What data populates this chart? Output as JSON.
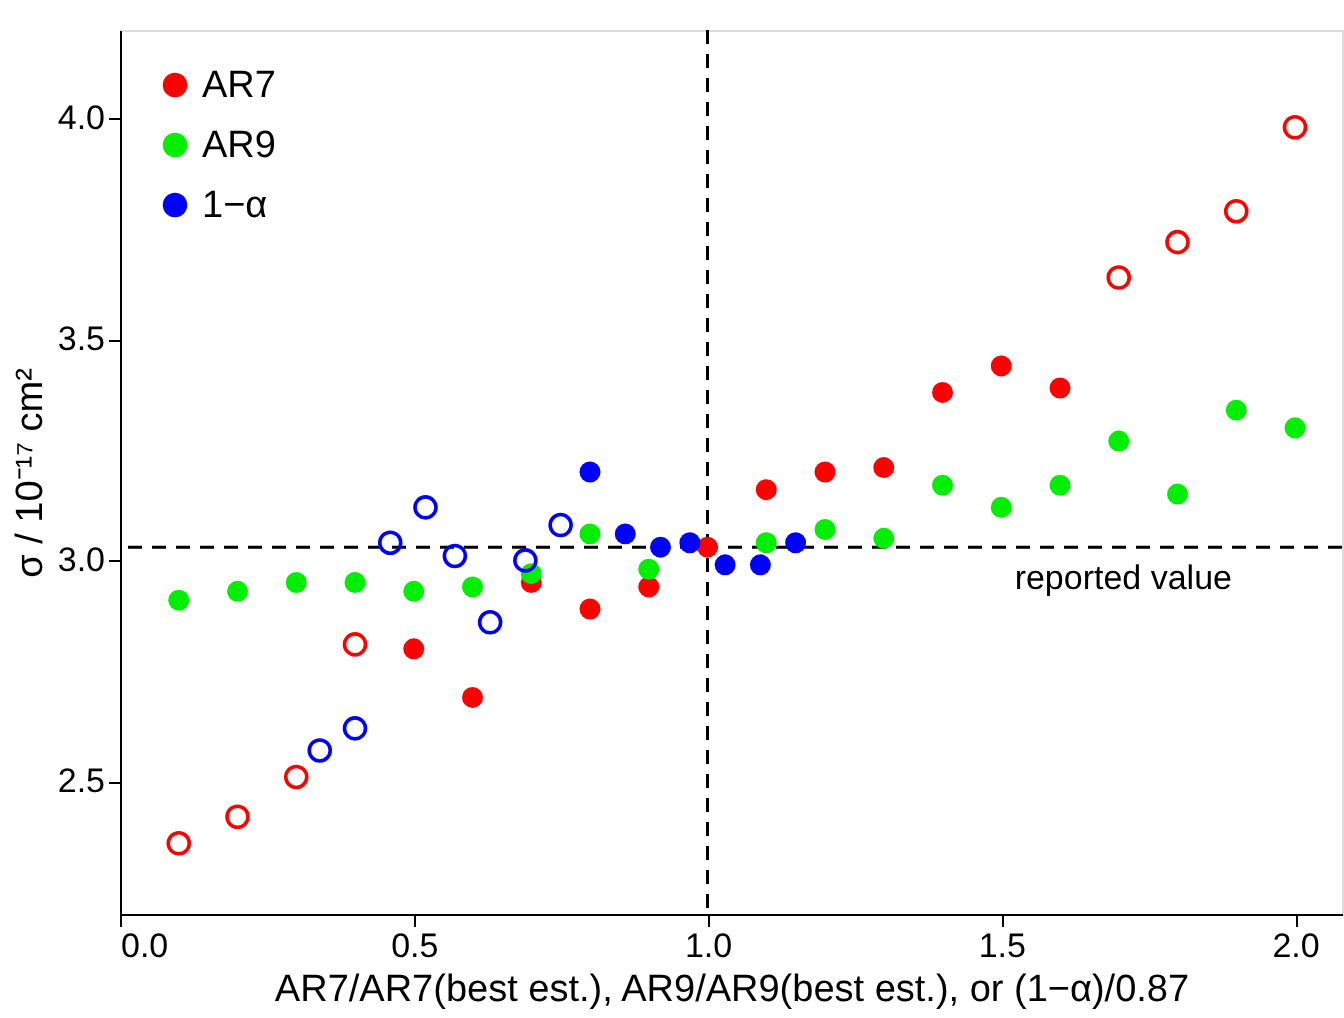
{
  "chart_data": {
    "type": "scatter",
    "xlabel": "AR7/AR7(best est.), AR9/AR9(best est.), or (1−α)/0.87",
    "ylabel": "σ / 10⁻¹⁷ cm²",
    "xlim": [
      0,
      2.08
    ],
    "ylim": [
      2.2,
      4.2
    ],
    "xticks": [
      {
        "value": 0,
        "label": "0.0"
      },
      {
        "value": 0.5,
        "label": "0.5"
      },
      {
        "value": 1,
        "label": "1.0"
      },
      {
        "value": 1.5,
        "label": "1.5"
      },
      {
        "value": 2,
        "label": "2.0"
      }
    ],
    "yticks": [
      2.5,
      {
        "value": 3,
        "label": "3.0"
      },
      3.5,
      {
        "value": 4,
        "label": "4.0"
      }
    ],
    "grid": false,
    "legend": "top left",
    "marker": "circle",
    "ref_lines": [
      {
        "axis": "y",
        "value": 3.03,
        "label": "reported value",
        "color": "#000000",
        "line_style": "dashed"
      },
      {
        "axis": "x",
        "value": 1.0,
        "label": null,
        "color": "#000000",
        "line_style": "dashed"
      }
    ],
    "series": [
      {
        "name": "AR7",
        "color": "#ff0000",
        "x": [
          0.5,
          0.6,
          0.7,
          0.8,
          0.9,
          1.0,
          1.1,
          1.2,
          1.3,
          1.4,
          1.5,
          1.6
        ],
        "values": [
          2.8,
          2.69,
          2.95,
          2.89,
          2.94,
          3.03,
          3.16,
          3.2,
          3.21,
          3.38,
          3.44,
          3.39
        ]
      },
      {
        "name": "AR9",
        "color": "#00ee00",
        "x": [
          0.1,
          0.2,
          0.3,
          0.4,
          0.5,
          0.6,
          0.7,
          0.8,
          0.9,
          1.1,
          1.2,
          1.3,
          1.4,
          1.5,
          1.6,
          1.7,
          1.8,
          1.9,
          2.0
        ],
        "values": [
          2.91,
          2.93,
          2.95,
          2.95,
          2.93,
          2.94,
          2.97,
          3.06,
          2.98,
          3.04,
          3.07,
          3.05,
          3.17,
          3.12,
          3.17,
          3.27,
          3.15,
          3.34,
          3.3
        ]
      },
      {
        "name": "1−α",
        "color": "#0000ff",
        "x": [
          0.8,
          0.86,
          0.92,
          0.97,
          1.03,
          1.09,
          1.15
        ],
        "values": [
          3.2,
          3.06,
          3.03,
          3.04,
          2.99,
          2.99,
          3.04
        ]
      },
      {
        "color": "#ff0000",
        "x": [
          0.1,
          0.2,
          0.3,
          0.4,
          1.7,
          1.8,
          1.9,
          2.0
        ],
        "values": [
          2.36,
          2.42,
          2.51,
          2.81,
          3.64,
          3.72,
          3.79,
          3.98
        ]
      },
      {
        "color": "#0000ff",
        "x": [
          0.34,
          0.4,
          0.46,
          0.52,
          0.57,
          0.63,
          0.69,
          0.75
        ],
        "values": [
          2.57,
          2.62,
          3.04,
          3.12,
          3.01,
          2.86,
          3.0,
          3.08
        ]
      }
    ]
  }
}
